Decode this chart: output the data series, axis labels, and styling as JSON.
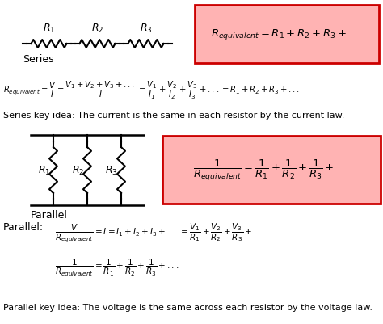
{
  "bg_color": "#ffffff",
  "box_fill_color": "#ffb3b3",
  "box_edge_color": "#cc0000",
  "fig_width": 4.74,
  "fig_height": 4.02,
  "series_label": "Series",
  "parallel_label": "Parallel",
  "series_key_idea": "Series key idea: The current is the same in each resistor by the current law.",
  "parallel_key_idea": "Parallel key idea: The voltage is the same across each resistor by the voltage law."
}
